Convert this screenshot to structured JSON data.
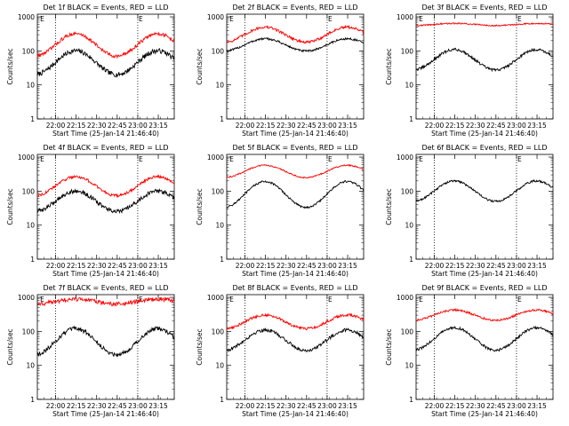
{
  "chart_data": [
    {
      "type": "line",
      "title": "Det 1f BLACK = Events, RED = LLD",
      "xlabel": "Start Time (25-Jan-14 21:46:40)",
      "ylabel": "Counts/sec",
      "xticks": [
        "22:00",
        "22:15",
        "22:30",
        "22:45",
        "23:00",
        "23:15"
      ],
      "yticks": [
        "1",
        "10",
        "100",
        "1000"
      ],
      "ylim": [
        1,
        1200
      ],
      "yscale": "log",
      "marker_label": "E",
      "series": [
        {
          "name": "Events",
          "color": "#000000",
          "base": 45,
          "amp": 0.35,
          "noise": 0.07
        },
        {
          "name": "LLD",
          "color": "#ff0000",
          "base": 150,
          "amp": 0.33,
          "noise": 0.05
        }
      ]
    },
    {
      "type": "line",
      "title": "Det 2f BLACK = Events, RED = LLD",
      "xlabel": "Start Time (25-Jan-14 21:46:40)",
      "ylabel": "Counts/sec",
      "xticks": [
        "22:00",
        "22:15",
        "22:30",
        "22:45",
        "23:00",
        "23:15"
      ],
      "yticks": [
        "1",
        "10",
        "100",
        "1000"
      ],
      "ylim": [
        1,
        1200
      ],
      "yscale": "log",
      "marker_label": "E",
      "series": [
        {
          "name": "Events",
          "color": "#000000",
          "base": 150,
          "amp": 0.18,
          "noise": 0.03
        },
        {
          "name": "LLD",
          "color": "#ff0000",
          "base": 300,
          "amp": 0.22,
          "noise": 0.04
        }
      ]
    },
    {
      "type": "line",
      "title": "Det 3f BLACK = Events, RED = LLD",
      "xlabel": "Start Time (25-Jan-14 21:46:40)",
      "ylabel": "Counts/sec",
      "xticks": [
        "22:00",
        "22:15",
        "22:30",
        "22:45",
        "23:00",
        "23:15"
      ],
      "yticks": [
        "1",
        "10",
        "100",
        "1000"
      ],
      "ylim": [
        1,
        1200
      ],
      "yscale": "log",
      "marker_label": "E",
      "series": [
        {
          "name": "Events",
          "color": "#000000",
          "base": 55,
          "amp": 0.3,
          "noise": 0.04
        },
        {
          "name": "LLD",
          "color": "#ff0000",
          "base": 600,
          "amp": 0.03,
          "noise": 0.02
        }
      ]
    },
    {
      "type": "line",
      "title": "Det 4f BLACK = Events, RED = LLD",
      "xlabel": "Start Time (25-Jan-14 21:46:40)",
      "ylabel": "Counts/sec",
      "xticks": [
        "22:00",
        "22:15",
        "22:30",
        "22:45",
        "23:00",
        "23:15"
      ],
      "yticks": [
        "1",
        "10",
        "100",
        "1000"
      ],
      "ylim": [
        1,
        1200
      ],
      "yscale": "log",
      "marker_label": "E",
      "series": [
        {
          "name": "Events",
          "color": "#000000",
          "base": 50,
          "amp": 0.3,
          "noise": 0.06
        },
        {
          "name": "LLD",
          "color": "#ff0000",
          "base": 140,
          "amp": 0.28,
          "noise": 0.04
        }
      ]
    },
    {
      "type": "line",
      "title": "Det 5f BLACK = Events, RED = LLD",
      "xlabel": "Start Time (25-Jan-14 21:46:40)",
      "ylabel": "Counts/sec",
      "xticks": [
        "22:00",
        "22:15",
        "22:30",
        "22:45",
        "23:00",
        "23:15"
      ],
      "yticks": [
        "1",
        "10",
        "100",
        "1000"
      ],
      "ylim": [
        1,
        1200
      ],
      "yscale": "log",
      "marker_label": "E",
      "series": [
        {
          "name": "Events",
          "color": "#000000",
          "base": 80,
          "amp": 0.38,
          "noise": 0.03
        },
        {
          "name": "LLD",
          "color": "#ff0000",
          "base": 380,
          "amp": 0.18,
          "noise": 0.02
        }
      ]
    },
    {
      "type": "line",
      "title": "Det 6f BLACK = Events, RED = LLD",
      "xlabel": "Start Time (25-Jan-14 21:46:40)",
      "ylabel": "Counts/sec",
      "xticks": [
        "22:00",
        "22:15",
        "22:30",
        "22:45",
        "23:00",
        "23:15"
      ],
      "yticks": [
        "1",
        "10",
        "100",
        "1000"
      ],
      "ylim": [
        1,
        1200
      ],
      "yscale": "log",
      "marker_label": "E",
      "series": [
        {
          "name": "Events",
          "color": "#000000",
          "base": 100,
          "amp": 0.3,
          "noise": 0.03
        }
      ]
    },
    {
      "type": "line",
      "title": "Det 7f BLACK = Events, RED = LLD",
      "xlabel": "Start Time (25-Jan-14 21:46:40)",
      "ylabel": "Counts/sec",
      "xticks": [
        "22:00",
        "22:15",
        "22:30",
        "22:45",
        "23:00",
        "23:15"
      ],
      "yticks": [
        "1",
        "10",
        "100",
        "1000"
      ],
      "ylim": [
        1,
        1200
      ],
      "yscale": "log",
      "marker_label": "E",
      "series": [
        {
          "name": "Events",
          "color": "#000000",
          "base": 50,
          "amp": 0.38,
          "noise": 0.06
        },
        {
          "name": "LLD",
          "color": "#ff0000",
          "base": 750,
          "amp": 0.07,
          "noise": 0.06
        }
      ]
    },
    {
      "type": "line",
      "title": "Det 8f BLACK = Events, RED = LLD",
      "xlabel": "Start Time (25-Jan-14 21:46:40)",
      "ylabel": "Counts/sec",
      "xticks": [
        "22:00",
        "22:15",
        "22:30",
        "22:45",
        "23:00",
        "23:15"
      ],
      "yticks": [
        "1",
        "10",
        "100",
        "1000"
      ],
      "ylim": [
        1,
        1200
      ],
      "yscale": "log",
      "marker_label": "E",
      "series": [
        {
          "name": "Events",
          "color": "#000000",
          "base": 55,
          "amp": 0.3,
          "noise": 0.05
        },
        {
          "name": "LLD",
          "color": "#ff0000",
          "base": 190,
          "amp": 0.2,
          "noise": 0.04
        }
      ]
    },
    {
      "type": "line",
      "title": "Det 9f BLACK = Events, RED = LLD",
      "xlabel": "Start Time (25-Jan-14 21:46:40)",
      "ylabel": "Counts/sec",
      "xticks": [
        "22:00",
        "22:15",
        "22:30",
        "22:45",
        "23:00",
        "23:15"
      ],
      "yticks": [
        "1",
        "10",
        "100",
        "1000"
      ],
      "ylim": [
        1,
        1200
      ],
      "yscale": "log",
      "marker_label": "E",
      "series": [
        {
          "name": "Events",
          "color": "#000000",
          "base": 60,
          "amp": 0.33,
          "noise": 0.04
        },
        {
          "name": "LLD",
          "color": "#ff0000",
          "base": 300,
          "amp": 0.15,
          "noise": 0.03
        }
      ]
    }
  ]
}
